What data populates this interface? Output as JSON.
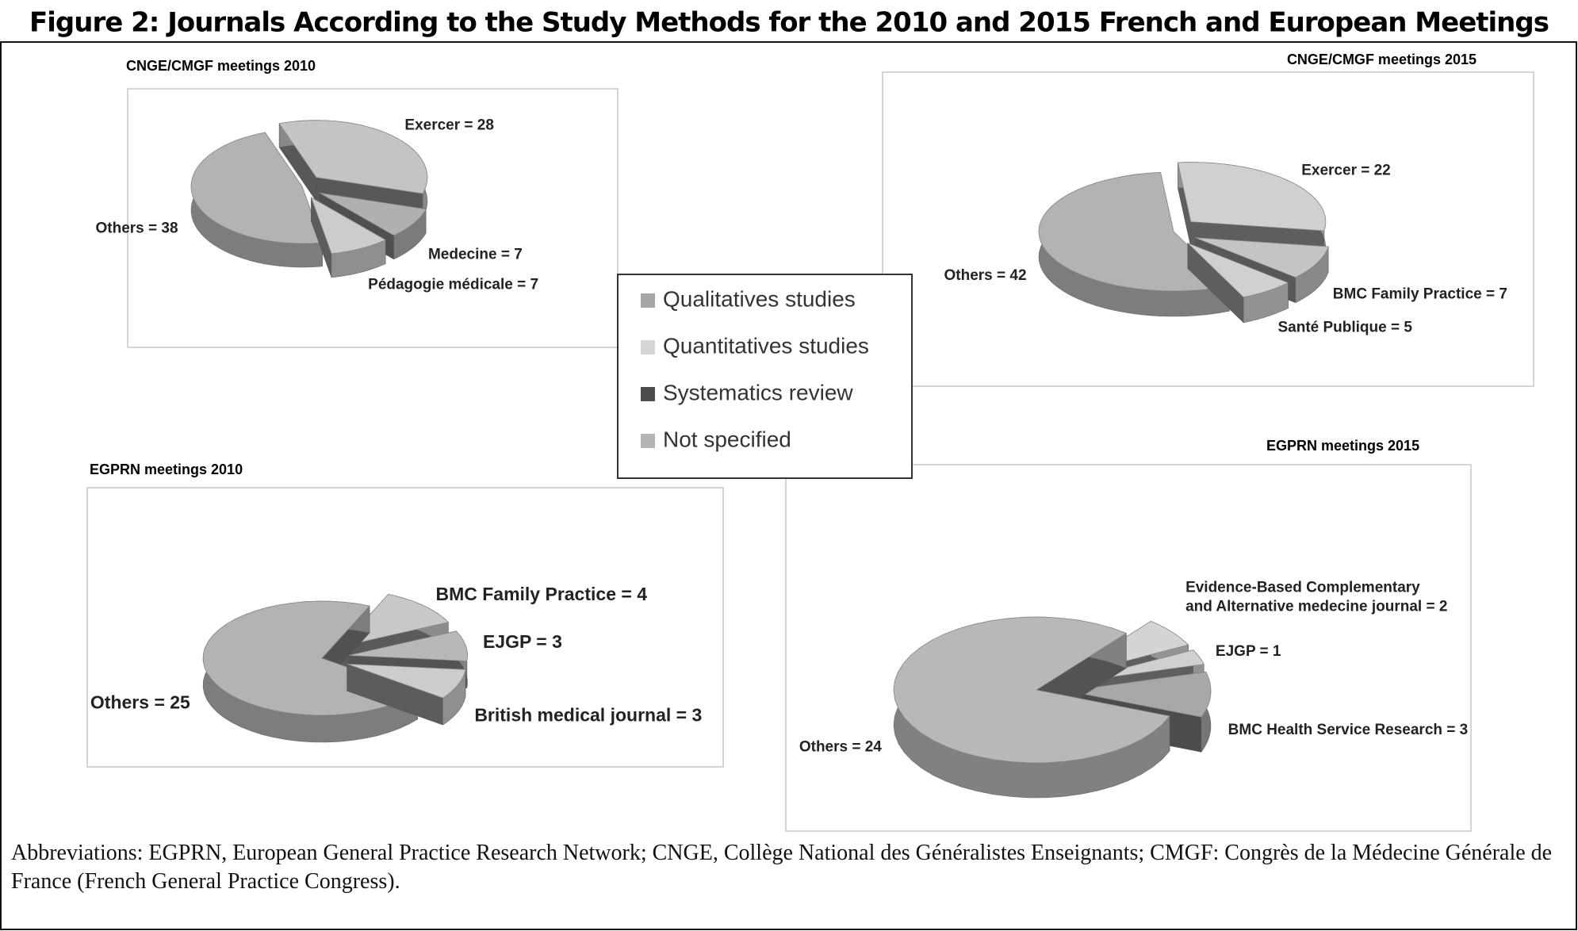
{
  "title": "Figure 2: Journals According to the Study Methods for the 2010 and 2015 French and European Meetings",
  "legend": [
    {
      "name": "Qualitatives studies",
      "color": "#a6a6a6"
    },
    {
      "name": "Quantitatives studies",
      "color": "#d6d6d6"
    },
    {
      "name": "Systematics review",
      "color": "#4d4d4d"
    },
    {
      "name": "Not specified",
      "color": "#b3b3b3"
    }
  ],
  "chart_data": [
    {
      "type": "pie",
      "title": "CNGE/CMGF meetings 2010",
      "values": [
        38,
        28,
        7,
        7
      ],
      "value_labels": [
        "Others = 38",
        "Exercer = 28",
        "Medecine = 7",
        "Pédagogie médicale = 7"
      ],
      "colors": [
        "#b3b3b3",
        "#c4c4c4",
        "#b0b0b0",
        "#cccccc"
      ]
    },
    {
      "type": "pie",
      "title": "CNGE/CMGF meetings 2015",
      "values": [
        42,
        22,
        7,
        5
      ],
      "value_labels": [
        "Others = 42",
        "Exercer = 22",
        "BMC Family Practice = 7",
        "Santé Publique = 5"
      ],
      "colors": [
        "#b3b3b3",
        "#d0d0d0",
        "#c4c4c4",
        "#d0d0d0"
      ]
    },
    {
      "type": "pie",
      "title": "EGPRN meetings 2010",
      "values": [
        25,
        4,
        3,
        3
      ],
      "value_labels": [
        "Others = 25",
        "BMC Family Practice = 4",
        "EJGP = 3",
        "British medical journal = 3"
      ],
      "colors": [
        "#b3b3b3",
        "#c8c8c8",
        "#b8b8b8",
        "#cccccc"
      ]
    },
    {
      "type": "pie",
      "title": "EGPRN meetings 2015",
      "values": [
        24,
        2,
        1,
        3
      ],
      "value_labels": [
        "Others = 24",
        [
          "Evidence-Based Complementary",
          "and Alternative medecine journal  = 2"
        ],
        "EJGP = 1",
        "BMC Health Service Research = 3"
      ],
      "colors": [
        "#b8b8b8",
        "#d4d4d4",
        "#d0d0d0",
        "#a8a8a8"
      ]
    }
  ],
  "footnote": "Abbreviations: EGPRN, European General Practice Research Network; CNGE, Collège National des Généralistes Enseignants; CMGF: Congrès de la Médecine Générale de France (French General Practice Congress)."
}
